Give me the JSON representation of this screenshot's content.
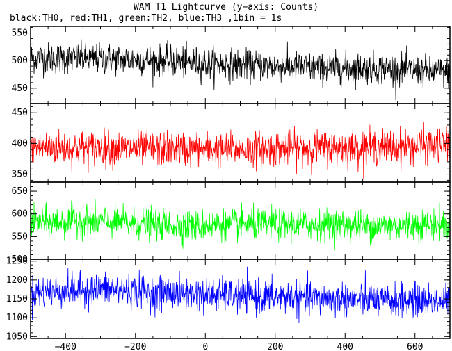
{
  "chart_data": {
    "type": "line",
    "title": "WAM T1 Lightcurve (y−axis: Counts)",
    "subtitle": "black:TH0, red:TH1, green:TH2, blue:TH3 ,1bin = 1s",
    "xlabel": "",
    "ylabel": "",
    "xlim": [
      -500,
      700
    ],
    "x_ticks": [
      -400,
      -200,
      0,
      200,
      400,
      600
    ],
    "x_tick_labels": [
      "−400",
      "−200",
      "0",
      "200",
      "400",
      "600"
    ],
    "bin_seconds": 1,
    "grid": false,
    "legend": "none",
    "panels": [
      {
        "name": "TH0",
        "color": "#000000",
        "ylim": [
          422,
          562
        ],
        "y_ticks": [
          450,
          500,
          550
        ],
        "baseline": [
          [
            -500,
            505
          ],
          [
            -200,
            502
          ],
          [
            0,
            495
          ],
          [
            300,
            487
          ],
          [
            500,
            486
          ],
          [
            700,
            478
          ]
        ],
        "spread": 14
      },
      {
        "name": "TH1",
        "color": "#ff0000",
        "ylim": [
          337,
          465
        ],
        "y_ticks": [
          350,
          400,
          450
        ],
        "baseline": [
          [
            -500,
            394
          ],
          [
            0,
            390
          ],
          [
            500,
            394
          ],
          [
            700,
            397
          ]
        ],
        "spread": 14
      },
      {
        "name": "TH2",
        "color": "#00ff00",
        "ylim": [
          500,
          670
        ],
        "y_ticks": [
          500,
          550,
          600,
          650
        ],
        "baseline": [
          [
            -500,
            580
          ],
          [
            -350,
            584
          ],
          [
            -50,
            574
          ],
          [
            200,
            578
          ],
          [
            500,
            574
          ],
          [
            700,
            577
          ]
        ],
        "spread": 17
      },
      {
        "name": "TH3",
        "color": "#0000ff",
        "ylim": [
          1045,
          1255
        ],
        "y_ticks": [
          1050,
          1100,
          1150,
          1200,
          1250
        ],
        "baseline": [
          [
            -500,
            1167
          ],
          [
            -300,
            1175
          ],
          [
            0,
            1160
          ],
          [
            300,
            1152
          ],
          [
            500,
            1145
          ],
          [
            700,
            1145
          ]
        ],
        "spread": 22
      }
    ]
  }
}
